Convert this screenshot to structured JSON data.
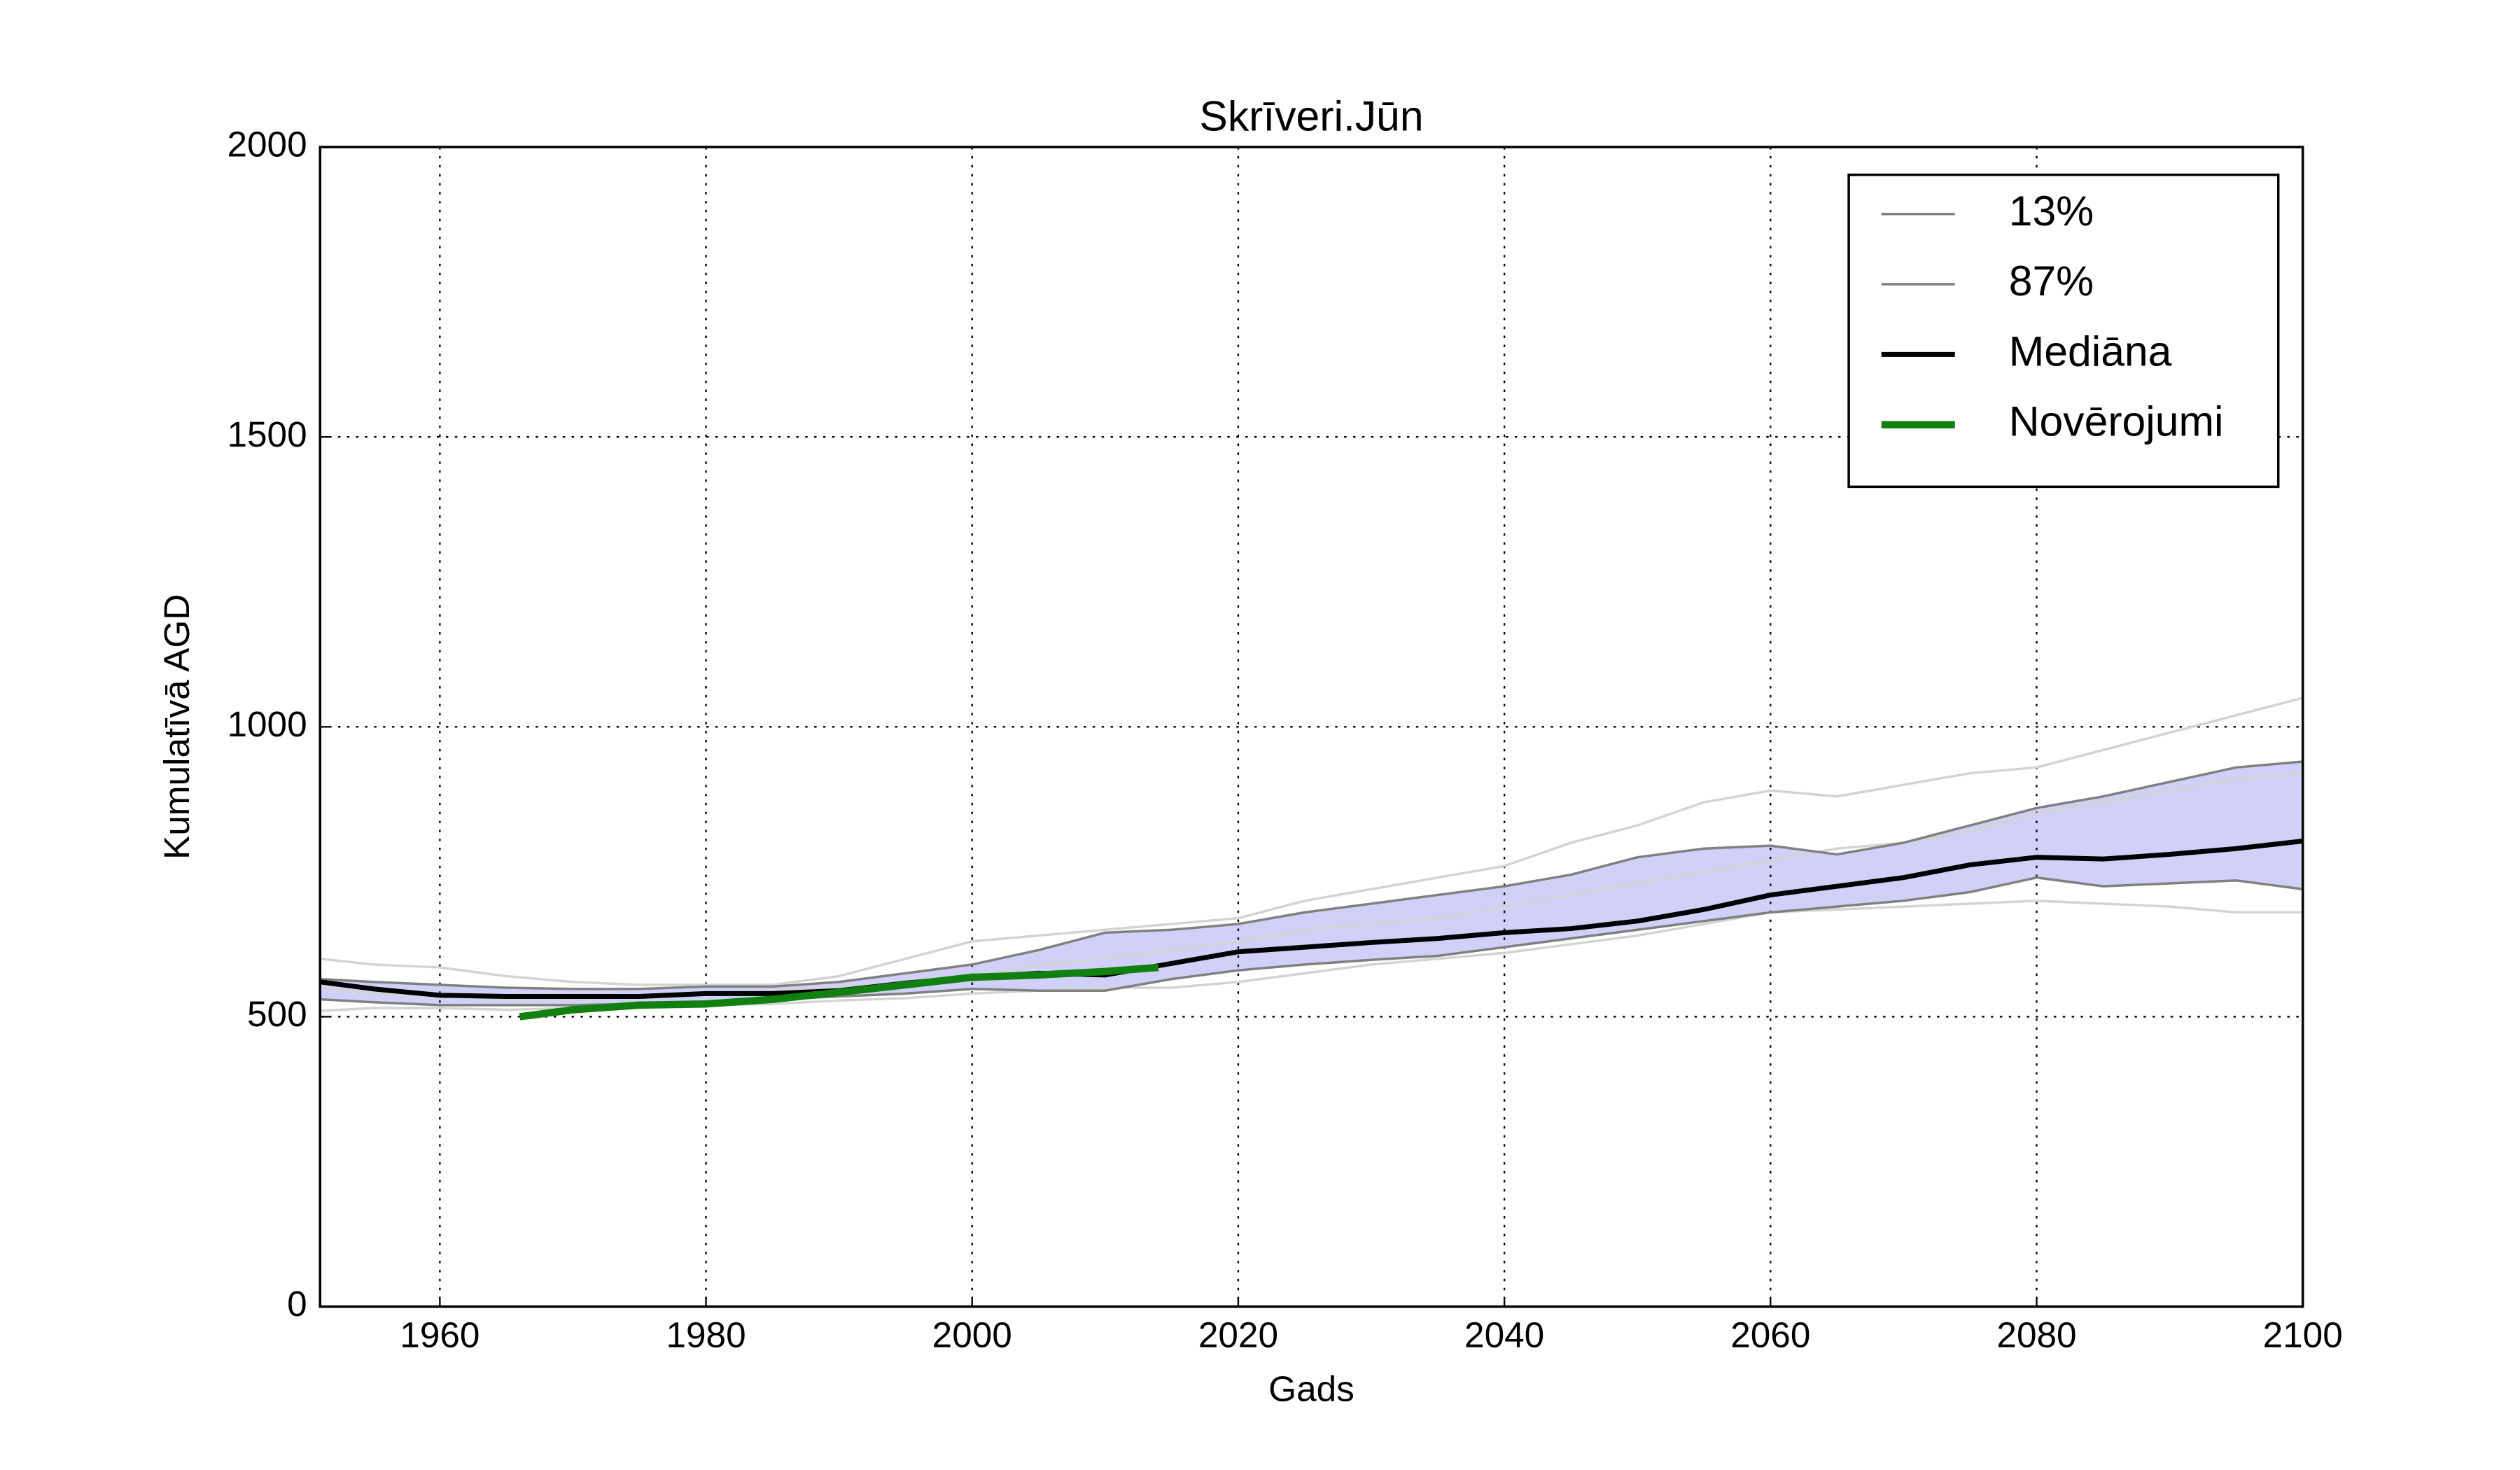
{
  "chart_data": {
    "type": "line",
    "title": "Skrīveri.Jūn",
    "xlabel": "Gads",
    "ylabel": "Kumulatīvā AGD",
    "x": [
      1951,
      1955,
      1960,
      1965,
      1970,
      1975,
      1980,
      1985,
      1990,
      1995,
      2000,
      2005,
      2010,
      2015,
      2020,
      2025,
      2030,
      2035,
      2040,
      2045,
      2050,
      2055,
      2060,
      2065,
      2070,
      2075,
      2080,
      2085,
      2090,
      2095,
      2100
    ],
    "series": [
      {
        "name": "13%",
        "color": "#808080",
        "values": [
          530,
          525,
          520,
          520,
          520,
          522,
          525,
          530,
          535,
          540,
          548,
          545,
          545,
          565,
          580,
          590,
          598,
          605,
          620,
          635,
          650,
          665,
          680,
          690,
          700,
          715,
          740,
          725,
          730,
          735,
          720
        ]
      },
      {
        "name": "87%",
        "color": "#808080",
        "values": [
          565,
          560,
          555,
          550,
          548,
          548,
          552,
          552,
          560,
          575,
          590,
          615,
          645,
          650,
          660,
          680,
          695,
          710,
          725,
          745,
          775,
          790,
          795,
          780,
          800,
          830,
          860,
          880,
          905,
          930,
          940
        ]
      },
      {
        "name": "Mediāna",
        "color": "#000000",
        "values": [
          560,
          548,
          537,
          535,
          535,
          535,
          540,
          540,
          545,
          558,
          568,
          575,
          572,
          592,
          612,
          620,
          628,
          635,
          645,
          652,
          665,
          685,
          710,
          725,
          740,
          762,
          775,
          772,
          780,
          790,
          803
        ]
      },
      {
        "name": "Novērojumi",
        "color": "#108010",
        "x": [
          1966,
          1970,
          1975,
          1980,
          1985,
          1990,
          1995,
          2000,
          2005,
          2010,
          2014
        ],
        "values": [
          500,
          512,
          520,
          522,
          530,
          542,
          555,
          568,
          572,
          578,
          585
        ]
      }
    ],
    "ensemble": [
      [
        600,
        590,
        585,
        570,
        560,
        555,
        555,
        555,
        570,
        600,
        630,
        640,
        650,
        660,
        670,
        700,
        720,
        740,
        760,
        800,
        830,
        870,
        890,
        880,
        900,
        920,
        930,
        960,
        990,
        1020,
        1050
      ],
      [
        510,
        515,
        515,
        512,
        515,
        518,
        520,
        522,
        528,
        532,
        540,
        545,
        550,
        550,
        560,
        575,
        590,
        600,
        610,
        625,
        640,
        660,
        680,
        685,
        690,
        695,
        700,
        695,
        690,
        680,
        680
      ],
      [
        550,
        540,
        535,
        530,
        530,
        532,
        538,
        545,
        550,
        560,
        570,
        590,
        600,
        615,
        630,
        650,
        660,
        670,
        690,
        710,
        730,
        750,
        770,
        790,
        800,
        820,
        850,
        870,
        890,
        910,
        920
      ]
    ],
    "ensemble_color": "#d3d3d3",
    "band_color": "#d0d0f8",
    "xlim": [
      1951,
      2100
    ],
    "xticks": [
      1960,
      1980,
      2000,
      2020,
      2040,
      2060,
      2080,
      2100
    ],
    "ylim": [
      0,
      2000
    ],
    "yticks": [
      0,
      500,
      1000,
      1500,
      2000
    ],
    "grid": true,
    "legend": "upper right"
  }
}
